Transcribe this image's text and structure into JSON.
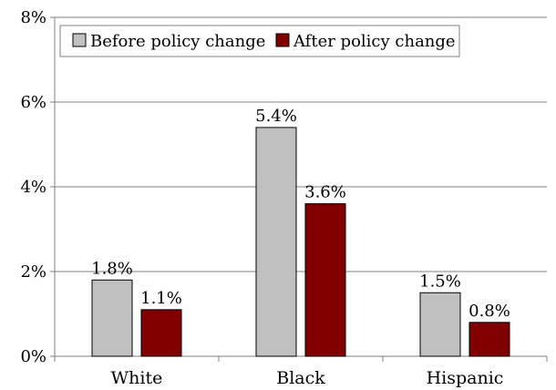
{
  "chart_data": {
    "type": "bar",
    "categories": [
      "White",
      "Black",
      "Hispanic"
    ],
    "series": [
      {
        "name": "Before policy change",
        "color": "#c0c0c0",
        "values": [
          1.8,
          5.4,
          1.5
        ],
        "labels": [
          "1.8%",
          "5.4%",
          "1.5%"
        ]
      },
      {
        "name": "After policy change",
        "color": "#800000",
        "values": [
          1.1,
          3.6,
          0.8
        ],
        "labels": [
          "1.1%",
          "3.6%",
          "0.8%"
        ]
      }
    ],
    "ylim": [
      0,
      8
    ],
    "yticks": [
      {
        "value": 0,
        "label": "0%"
      },
      {
        "value": 2,
        "label": "2%"
      },
      {
        "value": 4,
        "label": "4%"
      },
      {
        "value": 6,
        "label": "6%"
      },
      {
        "value": 8,
        "label": "8%"
      }
    ],
    "grid": true,
    "legend": "top-left",
    "title": "",
    "xlabel": "",
    "ylabel": ""
  }
}
